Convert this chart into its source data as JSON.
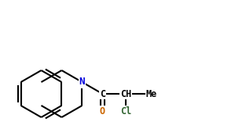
{
  "bg_color": "#ffffff",
  "line_color": "#000000",
  "N_color": "#0000dd",
  "O_color": "#cc6600",
  "Cl_color": "#336633",
  "figsize": [
    2.99,
    1.65
  ],
  "dpi": 100,
  "bond_lw": 1.5,
  "font_size": 8.5,
  "xlim": [
    -0.3,
    8.5
  ],
  "ylim": [
    -1.5,
    4.0
  ]
}
